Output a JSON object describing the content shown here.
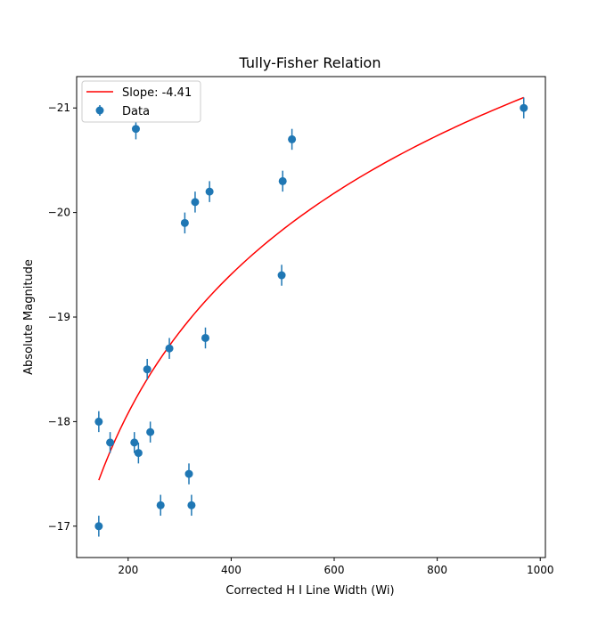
{
  "chart_data": {
    "type": "scatter",
    "title": "Tully-Fisher Relation",
    "xlabel": "Corrected H I Line Width (Wi)",
    "ylabel": "Absolute Magnitude",
    "xlim": [
      100,
      1010
    ],
    "ylim": [
      -16.7,
      -21.3
    ],
    "y_inverted": true,
    "xticks": [
      200,
      400,
      600,
      800,
      1000
    ],
    "yticks": [
      -17,
      -18,
      -19,
      -20,
      -21
    ],
    "xtick_labels": [
      "200",
      "400",
      "600",
      "800",
      "1000"
    ],
    "ytick_labels": [
      "−17",
      "−18",
      "−19",
      "−20",
      "−21"
    ],
    "series": [
      {
        "name": "Data",
        "kind": "errorbar-scatter",
        "color": "#1f77b4",
        "yerr": 0.1,
        "points": [
          {
            "x": 143,
            "y": -18.0
          },
          {
            "x": 143,
            "y": -17.0
          },
          {
            "x": 165,
            "y": -17.8
          },
          {
            "x": 212,
            "y": -17.8
          },
          {
            "x": 215,
            "y": -20.8
          },
          {
            "x": 220,
            "y": -17.7
          },
          {
            "x": 237,
            "y": -18.5
          },
          {
            "x": 243,
            "y": -17.9
          },
          {
            "x": 263,
            "y": -17.2
          },
          {
            "x": 280,
            "y": -18.7
          },
          {
            "x": 310,
            "y": -19.9
          },
          {
            "x": 318,
            "y": -17.5
          },
          {
            "x": 323,
            "y": -17.2
          },
          {
            "x": 330,
            "y": -20.1
          },
          {
            "x": 350,
            "y": -18.8
          },
          {
            "x": 358,
            "y": -20.2
          },
          {
            "x": 498,
            "y": -19.4
          },
          {
            "x": 500,
            "y": -20.3
          },
          {
            "x": 518,
            "y": -20.7
          },
          {
            "x": 968,
            "y": -21.0
          }
        ]
      },
      {
        "name": "Slope: -4.41",
        "kind": "fit-line",
        "color": "#ff0000",
        "slope": -4.41,
        "x_range": [
          143,
          968
        ],
        "y_at_xmin": -17.44,
        "y_at_xmax": -21.1
      }
    ],
    "legend": {
      "position": "top-left",
      "entries": [
        "Slope: -4.41",
        "Data"
      ]
    }
  }
}
